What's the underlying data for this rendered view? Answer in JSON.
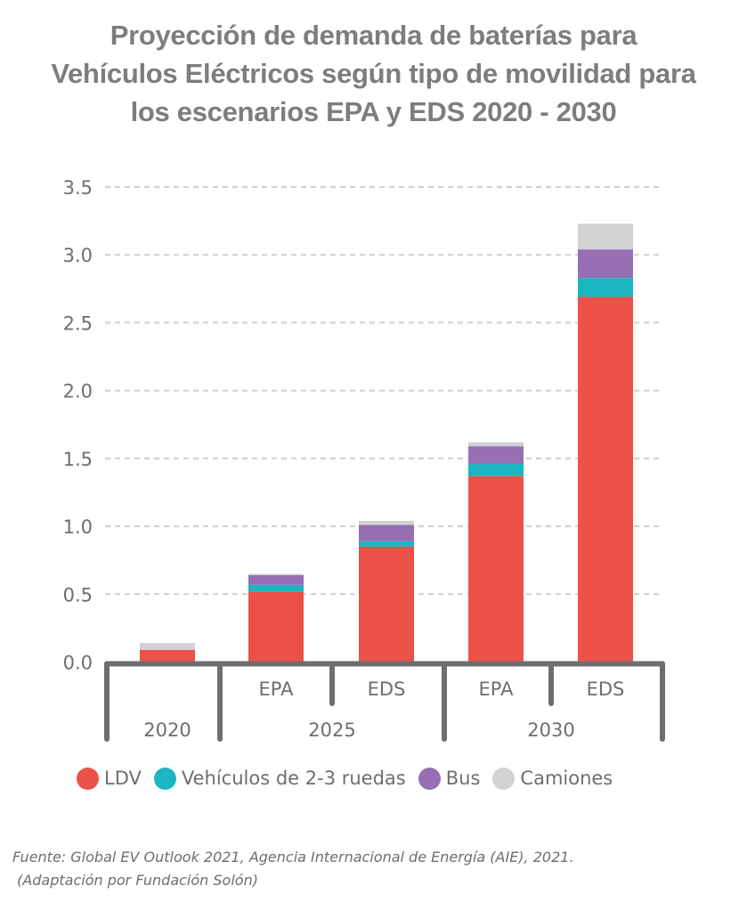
{
  "title_lines": [
    "Proyección de demanda de baterías para",
    "Vehículos Eléctricos según tipo de movilidad para",
    "los escenarios EPA y EDS 2020 - 2030"
  ],
  "source_lines": [
    "Fuente: Global EV Outlook 2021, Agencia Internacional de Energía (AIE), 2021.",
    " (Adaptación por Fundación Solón)"
  ],
  "chart_data": {
    "type": "bar",
    "stacked": true,
    "title": "Proyección de demanda de baterías para Vehículos Eléctricos según tipo de movilidad para los escenarios EPA y EDS 2020 - 2030",
    "xlabel": "",
    "ylabel": "",
    "ylim": [
      0,
      3.5
    ],
    "yticks": [
      0.0,
      0.5,
      1.0,
      1.5,
      2.0,
      2.5,
      3.0,
      3.5
    ],
    "ytick_labels": [
      "0.0",
      "0.5",
      "1.0",
      "1.5",
      "2.0",
      "2.5",
      "3.0",
      "3.5"
    ],
    "grid": "horizontal-dashed",
    "categories": [
      "2020",
      "2025 EPA",
      "2025 EDS",
      "2030 EPA",
      "2030 EDS"
    ],
    "category_groups": [
      {
        "label": "2020",
        "subcategories": [
          ""
        ]
      },
      {
        "label": "2025",
        "subcategories": [
          "EPA",
          "EDS"
        ]
      },
      {
        "label": "2030",
        "subcategories": [
          "EPA",
          "EDS"
        ]
      }
    ],
    "series": [
      {
        "name": "LDV",
        "color": "#ec5148",
        "values": [
          0.09,
          0.52,
          0.85,
          1.37,
          2.69
        ]
      },
      {
        "name": "Vehículos de 2-3 ruedas",
        "color": "#1bb6c1",
        "values": [
          0.0,
          0.05,
          0.04,
          0.09,
          0.14
        ]
      },
      {
        "name": "Bus",
        "color": "#9670b2",
        "values": [
          0.0,
          0.07,
          0.12,
          0.13,
          0.21
        ]
      },
      {
        "name": "Camiones",
        "color": "#d1d2d4",
        "values": [
          0.05,
          0.01,
          0.03,
          0.03,
          0.19
        ]
      }
    ],
    "legend_position": "bottom"
  },
  "colors": {
    "title": "#7d7d7d",
    "axis": "#6d6e71",
    "grid": "#cfcfcf"
  }
}
